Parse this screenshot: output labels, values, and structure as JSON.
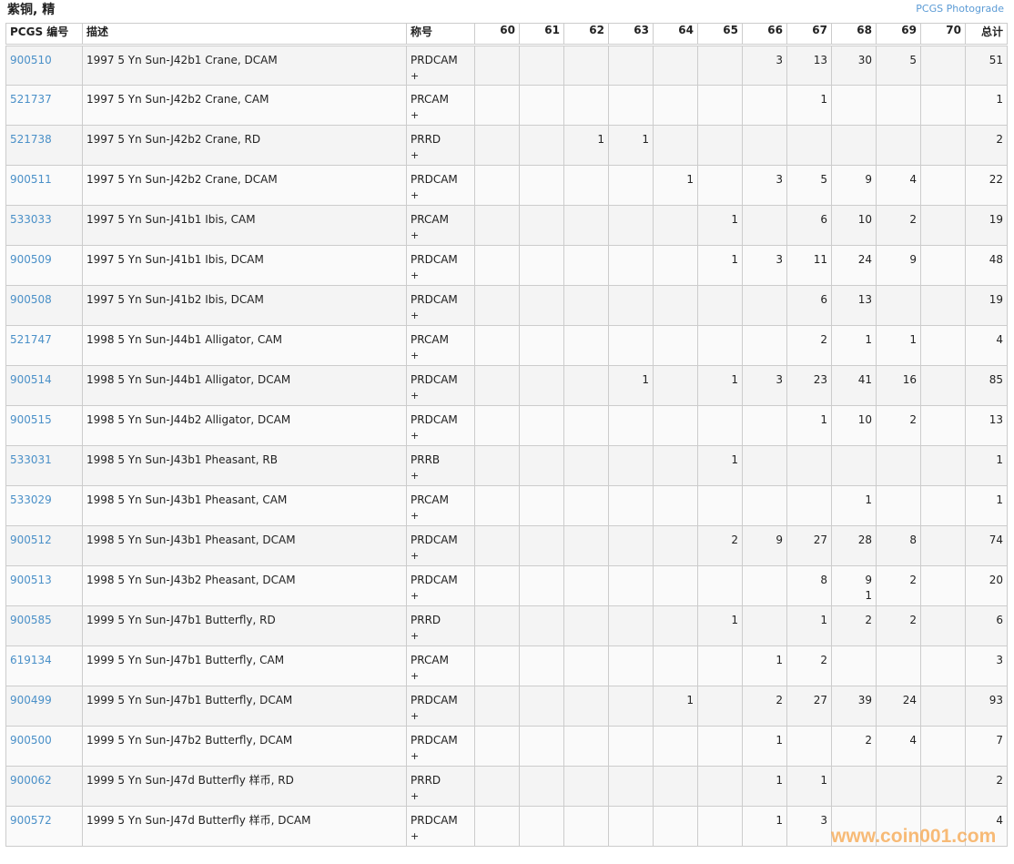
{
  "title": "紫铜, 精",
  "photograde_link": "PCGS Photograde",
  "headers": {
    "id": "PCGS 编号",
    "desc": "描述",
    "des": "称号",
    "grades": [
      "60",
      "61",
      "62",
      "63",
      "64",
      "65",
      "66",
      "67",
      "68",
      "69",
      "70"
    ],
    "total": "总计"
  },
  "rows": [
    {
      "id": "900510",
      "desc": "1997 5 Yn Sun-J42b1 Crane, DCAM",
      "des": "PRDCAM",
      "plus": "+",
      "cells": {
        "66": "3",
        "67": "13",
        "68": "30",
        "69": "5"
      },
      "total": "51"
    },
    {
      "id": "521737",
      "desc": "1997 5 Yn Sun-J42b2 Crane, CAM",
      "des": "PRCAM",
      "plus": "+",
      "cells": {
        "67": "1"
      },
      "total": "1"
    },
    {
      "id": "521738",
      "desc": "1997 5 Yn Sun-J42b2 Crane, RD",
      "des": "PRRD",
      "plus": "+",
      "cells": {
        "62": "1",
        "63": "1"
      },
      "total": "2"
    },
    {
      "id": "900511",
      "desc": "1997 5 Yn Sun-J42b2 Crane, DCAM",
      "des": "PRDCAM",
      "plus": "+",
      "cells": {
        "64": "1",
        "66": "3",
        "67": "5",
        "68": "9",
        "69": "4"
      },
      "total": "22"
    },
    {
      "id": "533033",
      "desc": "1997 5 Yn Sun-J41b1 Ibis, CAM",
      "des": "PRCAM",
      "plus": "+",
      "cells": {
        "65": "1",
        "67": "6",
        "68": "10",
        "69": "2"
      },
      "total": "19"
    },
    {
      "id": "900509",
      "desc": "1997 5 Yn Sun-J41b1 Ibis, DCAM",
      "des": "PRDCAM",
      "plus": "+",
      "cells": {
        "65": "1",
        "66": "3",
        "67": "11",
        "68": "24",
        "69": "9"
      },
      "total": "48"
    },
    {
      "id": "900508",
      "desc": "1997 5 Yn Sun-J41b2 Ibis, DCAM",
      "des": "PRDCAM",
      "plus": "+",
      "cells": {
        "67": "6",
        "68": "13"
      },
      "total": "19"
    },
    {
      "id": "521747",
      "desc": "1998 5 Yn Sun-J44b1 Alligator, CAM",
      "des": "PRCAM",
      "plus": "+",
      "cells": {
        "67": "2",
        "68": "1",
        "69": "1"
      },
      "total": "4"
    },
    {
      "id": "900514",
      "desc": "1998 5 Yn Sun-J44b1 Alligator, DCAM",
      "des": "PRDCAM",
      "plus": "+",
      "cells": {
        "63": "1",
        "65": "1",
        "66": "3",
        "67": "23",
        "68": "41",
        "69": "16"
      },
      "total": "85"
    },
    {
      "id": "900515",
      "desc": "1998 5 Yn Sun-J44b2 Alligator, DCAM",
      "des": "PRDCAM",
      "plus": "+",
      "cells": {
        "67": "1",
        "68": "10",
        "69": "2"
      },
      "total": "13"
    },
    {
      "id": "533031",
      "desc": "1998 5 Yn Sun-J43b1 Pheasant, RB",
      "des": "PRRB",
      "plus": "+",
      "cells": {
        "65": "1"
      },
      "total": "1"
    },
    {
      "id": "533029",
      "desc": "1998 5 Yn Sun-J43b1 Pheasant, CAM",
      "des": "PRCAM",
      "plus": "+",
      "cells": {
        "68": "1"
      },
      "total": "1"
    },
    {
      "id": "900512",
      "desc": "1998 5 Yn Sun-J43b1 Pheasant, DCAM",
      "des": "PRDCAM",
      "plus": "+",
      "cells": {
        "65": "2",
        "66": "9",
        "67": "27",
        "68": "28",
        "69": "8"
      },
      "total": "74"
    },
    {
      "id": "900513",
      "desc": "1998 5 Yn Sun-J43b2 Pheasant, DCAM",
      "des": "PRDCAM",
      "plus": "+",
      "cells": {
        "67": "8",
        "68": "9",
        "69": "2"
      },
      "plus_cells": {
        "68": "1"
      },
      "total": "20"
    },
    {
      "id": "900585",
      "desc": "1999 5 Yn Sun-J47b1 Butterfly, RD",
      "des": "PRRD",
      "plus": "+",
      "cells": {
        "65": "1",
        "67": "1",
        "68": "2",
        "69": "2"
      },
      "total": "6"
    },
    {
      "id": "619134",
      "desc": "1999 5 Yn Sun-J47b1 Butterfly, CAM",
      "des": "PRCAM",
      "plus": "+",
      "cells": {
        "66": "1",
        "67": "2"
      },
      "total": "3"
    },
    {
      "id": "900499",
      "desc": "1999 5 Yn Sun-J47b1 Butterfly, DCAM",
      "des": "PRDCAM",
      "plus": "+",
      "cells": {
        "64": "1",
        "66": "2",
        "67": "27",
        "68": "39",
        "69": "24"
      },
      "total": "93"
    },
    {
      "id": "900500",
      "desc": "1999 5 Yn Sun-J47b2 Butterfly, DCAM",
      "des": "PRDCAM",
      "plus": "+",
      "cells": {
        "66": "1",
        "68": "2",
        "69": "4"
      },
      "total": "7"
    },
    {
      "id": "900062",
      "desc": "1999 5 Yn Sun-J47d Butterfly 样币, RD",
      "des": "PRRD",
      "plus": "+",
      "cells": {
        "66": "1",
        "67": "1"
      },
      "total": "2"
    },
    {
      "id": "900572",
      "desc": "1999 5 Yn Sun-J47d Butterfly 样币, DCAM",
      "des": "PRDCAM",
      "plus": "+",
      "cells": {
        "66": "1",
        "67": "3"
      },
      "total": "4"
    }
  ],
  "watermark": "www.coin001.com",
  "colors": {
    "link": "#4a90c8",
    "watermark": "#f7a54a"
  }
}
